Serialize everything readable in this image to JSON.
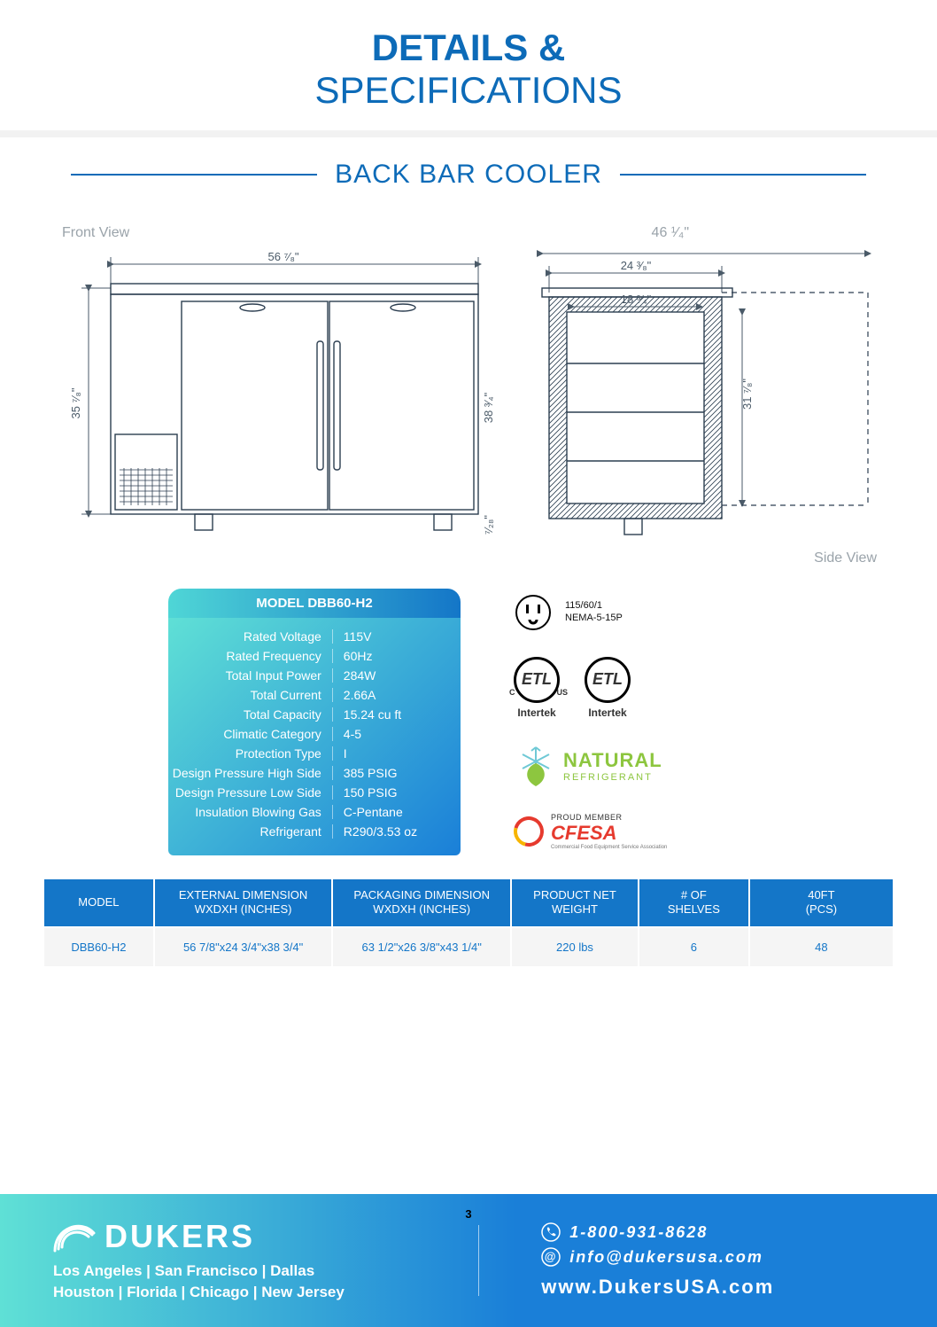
{
  "header": {
    "line1": "DETAILS &",
    "line2": "SPECIFICATIONS"
  },
  "section_title": "BACK BAR COOLER",
  "diagram": {
    "front_label": "Front View",
    "side_label": "Side View",
    "front": {
      "width": "56 ⁷⁄₈\"",
      "height_left": "35 ⁷⁄₈\"",
      "height_right": "38 ³⁄₄\"",
      "leg": "⁷⁄₂₈\""
    },
    "side": {
      "width_top": "46 ¹⁄₄\"",
      "depth": "24 ³⁄₈\"",
      "shelf_depth": "18 ³⁄₄\"",
      "interior_h": "31 ⁷⁄₈\""
    }
  },
  "spec_card": {
    "title": "MODEL DBB60-H2",
    "rows": [
      {
        "k": "Rated  Voltage",
        "v": "115V"
      },
      {
        "k": "Rated  Frequency",
        "v": "60Hz"
      },
      {
        "k": "Total Input Power",
        "v": "284W"
      },
      {
        "k": "Total Current",
        "v": "2.66A"
      },
      {
        "k": "Total Capacity",
        "v": "15.24 cu ft"
      },
      {
        "k": "Climatic Category",
        "v": "4-5"
      },
      {
        "k": "Protection Type",
        "v": "I"
      },
      {
        "k": "Design Pressure High Side",
        "v": "385 PSIG"
      },
      {
        "k": "Design Pressure Low Side",
        "v": "150 PSIG"
      },
      {
        "k": "Insulation Blowing Gas",
        "v": "C-Pentane"
      },
      {
        "k": "Refrigerant",
        "v": "R290/3.53 oz"
      }
    ]
  },
  "certs": {
    "plug": {
      "l1": "115/60/1",
      "l2": "NEMA-5-15P"
    },
    "etl": {
      "inner": "ETL",
      "sub": "Intertek"
    },
    "natural": {
      "main": "NATURAL",
      "sub": "REFRIGERANT"
    },
    "cfesa": {
      "pm": "PROUD MEMBER",
      "main": "CFESA",
      "tag": "Commercial Food Equipment Service Association"
    }
  },
  "dims_table": {
    "columns": [
      "MODEL",
      "EXTERNAL DIMENSION\nWXDXH (INCHES)",
      "PACKAGING DIMENSION\nWXDXH (INCHES)",
      "PRODUCT NET\nWEIGHT",
      "# OF\nSHELVES",
      "40FT\n(PCS)"
    ],
    "rows": [
      [
        "DBB60-H2",
        "56 7/8\"x24 3/4\"x38 3/4\"",
        "63 1/2\"x26 3/8\"x43 1/4\"",
        "220 lbs",
        "6",
        "48"
      ]
    ],
    "col_widths_pct": [
      13,
      21,
      21,
      15,
      13,
      17
    ]
  },
  "footer": {
    "brand": "DUKERS",
    "cities_l1": "Los Angeles | San Francisco | Dallas",
    "cities_l2": "Houston | Florida | Chicago | New Jersey",
    "phone": "1-800-931-8628",
    "email": "info@dukersusa.com",
    "url": "www.DukersUSA.com"
  },
  "page_number": "3",
  "colors": {
    "brand_blue": "#0d6bb8",
    "th_blue": "#1476c8",
    "grad_start": "#5fe0d6",
    "grad_end": "#1a7fd8",
    "diagram_stroke": "#2c3e50",
    "label_grey": "#9aa3aa"
  }
}
